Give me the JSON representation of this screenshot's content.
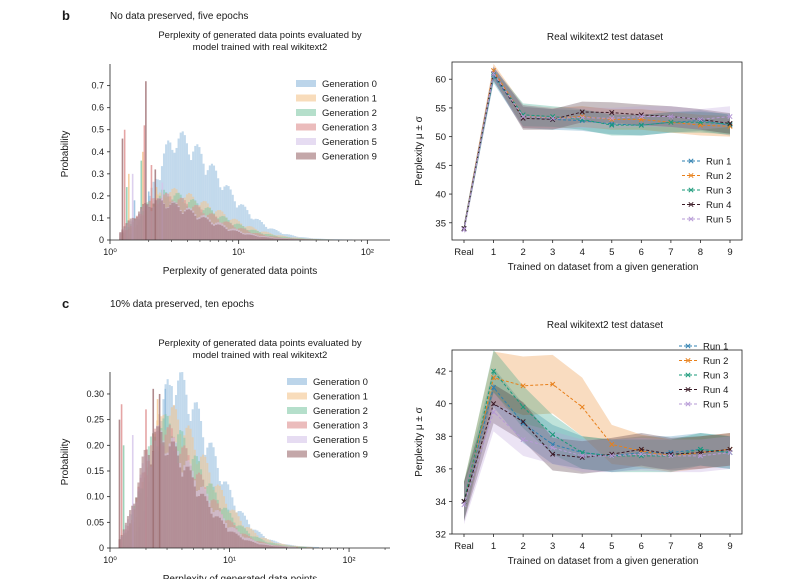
{
  "panels": [
    {
      "letter": "b",
      "caption": "No data preserved, five epochs"
    },
    {
      "letter": "c",
      "caption": "10% data preserved, ten epochs"
    }
  ],
  "gen_colors": {
    "Generation 0": "#8fb9dc",
    "Generation 1": "#f4c48e",
    "Generation 2": "#84c9a8",
    "Generation 3": "#de8f8f",
    "Generation 5": "#d5c4ea",
    "Generation 9": "#9c6d70"
  },
  "run_colors": {
    "Run 1": "#2f80b0",
    "Run 2": "#e8801b",
    "Run 3": "#1a9a7a",
    "Run 4": "#3a1a26",
    "Run 5": "#b69ad6"
  },
  "chart_data": [
    {
      "type": "histogram",
      "panel": "b",
      "title": "Perplexity of generated data points evaluated by model trained with real wikitext2",
      "title_lines": [
        "Perplexity of generated data points evaluated by",
        "model trained with real wikitext2"
      ],
      "xlabel": "Perplexity of generated data points",
      "ylabel": "Probability",
      "xscale": "log",
      "xlim": [
        1,
        150
      ],
      "ylim": [
        0,
        0.78
      ],
      "xticks": [
        {
          "v": 1,
          "label": "10⁰"
        },
        {
          "v": 10,
          "label": "10¹"
        },
        {
          "v": 100,
          "label": "10²"
        }
      ],
      "yticks": [
        0,
        0.1,
        0.2,
        0.3,
        0.4,
        0.5,
        0.6,
        0.7
      ],
      "ytick_labels": [
        "0",
        "0.1",
        "0.2",
        "0.3",
        "0.4",
        "0.5",
        "0.6",
        "0.7"
      ],
      "legend": [
        "Generation 0",
        "Generation 1",
        "Generation 2",
        "Generation 3",
        "Generation 5",
        "Generation 9"
      ],
      "series": [
        {
          "name": "Generation 0",
          "mode": 3.1,
          "spread": 0.24,
          "peak": 0.42,
          "spikes": [
            [
              1.55,
              0.18
            ],
            [
              2.0,
              0.22
            ]
          ]
        },
        {
          "name": "Generation 1",
          "mode": 2.7,
          "spread": 0.27,
          "peak": 0.2,
          "spikes": [
            [
              1.4,
              0.3
            ],
            [
              1.8,
              0.4
            ],
            [
              2.3,
              0.24
            ]
          ]
        },
        {
          "name": "Generation 2",
          "mode": 2.5,
          "spread": 0.27,
          "peak": 0.19,
          "spikes": [
            [
              1.35,
              0.24
            ],
            [
              1.75,
              0.36
            ]
          ]
        },
        {
          "name": "Generation 3",
          "mode": 2.4,
          "spread": 0.26,
          "peak": 0.18,
          "spikes": [
            [
              1.3,
              0.5
            ],
            [
              1.85,
              0.52
            ],
            [
              2.1,
              0.34
            ]
          ]
        },
        {
          "name": "Generation 5",
          "mode": 2.2,
          "spread": 0.26,
          "peak": 0.16,
          "spikes": [
            [
              1.5,
              0.3
            ],
            [
              2.55,
              0.26
            ]
          ]
        },
        {
          "name": "Generation 9",
          "mode": 2.1,
          "spread": 0.25,
          "peak": 0.16,
          "spikes": [
            [
              1.25,
              0.46
            ],
            [
              1.9,
              0.72
            ],
            [
              2.25,
              0.32
            ]
          ]
        }
      ]
    },
    {
      "type": "line",
      "panel": "b",
      "title": "Real wikitext2 test dataset",
      "xlabel": "Trained on dataset from a given generation",
      "ylabel": "Perplexity μ ± σ",
      "categories": [
        "Real",
        "1",
        "2",
        "3",
        "4",
        "5",
        "6",
        "7",
        "8",
        "9"
      ],
      "ylim": [
        32,
        63
      ],
      "yticks": [
        35,
        40,
        45,
        50,
        55,
        60
      ],
      "legend": [
        "Run 1",
        "Run 2",
        "Run 3",
        "Run 4",
        "Run 5"
      ],
      "series": [
        {
          "name": "Run 1",
          "values": [
            34,
            60.5,
            53.5,
            53,
            52.8,
            52.2,
            52,
            52.5,
            52.8,
            52
          ],
          "sigma": [
            0.8,
            1.2,
            2.0,
            1.8,
            1.8,
            1.8,
            1.8,
            1.8,
            1.8,
            1.8
          ]
        },
        {
          "name": "Run 2",
          "values": [
            34,
            61.5,
            53.5,
            53.2,
            53.5,
            53,
            53,
            52.5,
            52,
            51.8
          ],
          "sigma": [
            0.8,
            1.2,
            2.0,
            1.8,
            1.8,
            1.8,
            1.8,
            1.8,
            1.8,
            1.8
          ]
        },
        {
          "name": "Run 3",
          "values": [
            34,
            60.8,
            53.8,
            53.5,
            53,
            52,
            52,
            52.5,
            52.5,
            52.2
          ],
          "sigma": [
            0.8,
            1.2,
            2.0,
            1.8,
            1.8,
            1.8,
            1.8,
            1.8,
            1.8,
            1.8
          ]
        },
        {
          "name": "Run 4",
          "values": [
            34,
            61,
            53.2,
            53,
            54.3,
            54.2,
            53.8,
            53.5,
            53,
            52.3
          ],
          "sigma": [
            0.8,
            1.2,
            2.0,
            1.8,
            1.8,
            1.8,
            1.8,
            1.8,
            1.8,
            1.8
          ]
        },
        {
          "name": "Run 5",
          "values": [
            33.8,
            61,
            53.5,
            53.2,
            53.3,
            53.2,
            53.5,
            53.5,
            53,
            53.5
          ],
          "sigma": [
            0.8,
            1.2,
            2.0,
            1.8,
            1.8,
            1.8,
            1.8,
            1.8,
            1.8,
            1.8
          ]
        }
      ]
    },
    {
      "type": "histogram",
      "panel": "c",
      "title": "Perplexity of generated data points evaluated by model trained with real wikitext2",
      "title_lines": [
        "Perplexity of generated data points evaluated by",
        "model trained with real wikitext2"
      ],
      "xlabel": "Perplexity of generated data points",
      "ylabel": "Probability",
      "xscale": "log",
      "xlim": [
        1,
        220
      ],
      "ylim": [
        0,
        0.335
      ],
      "xticks": [
        {
          "v": 1,
          "label": "10⁰"
        },
        {
          "v": 10,
          "label": "10¹"
        },
        {
          "v": 100,
          "label": "10²"
        }
      ],
      "yticks": [
        0,
        0.05,
        0.1,
        0.15,
        0.2,
        0.25,
        0.3
      ],
      "ytick_labels": [
        "0",
        "0.05",
        "0.10",
        "0.15",
        "0.20",
        "0.25",
        "0.30"
      ],
      "legend": [
        "Generation 0",
        "Generation 1",
        "Generation 2",
        "Generation 3",
        "Generation 5",
        "Generation 9"
      ],
      "series": [
        {
          "name": "Generation 0",
          "mode": 3.2,
          "spread": 0.22,
          "peak": 0.3,
          "spikes": [
            [
              2.9,
              0.31
            ]
          ]
        },
        {
          "name": "Generation 1",
          "mode": 2.8,
          "spread": 0.24,
          "peak": 0.24,
          "spikes": [
            [
              2.5,
              0.29
            ]
          ]
        },
        {
          "name": "Generation 2",
          "mode": 2.6,
          "spread": 0.24,
          "peak": 0.22,
          "spikes": [
            [
              1.3,
              0.2
            ]
          ]
        },
        {
          "name": "Generation 3",
          "mode": 2.5,
          "spread": 0.23,
          "peak": 0.21,
          "spikes": [
            [
              1.25,
              0.28
            ],
            [
              2.0,
              0.27
            ]
          ]
        },
        {
          "name": "Generation 5",
          "mode": 2.4,
          "spread": 0.23,
          "peak": 0.2,
          "spikes": [
            [
              1.55,
              0.22
            ]
          ]
        },
        {
          "name": "Generation 9",
          "mode": 2.3,
          "spread": 0.22,
          "peak": 0.2,
          "spikes": [
            [
              1.2,
              0.25
            ],
            [
              2.3,
              0.31
            ],
            [
              2.6,
              0.3
            ]
          ]
        }
      ]
    },
    {
      "type": "line",
      "panel": "c",
      "title": "Real wikitext2 test dataset",
      "xlabel": "Trained on dataset from a given generation",
      "ylabel": "Perplexity μ ± σ",
      "categories": [
        "Real",
        "1",
        "2",
        "3",
        "4",
        "5",
        "6",
        "7",
        "8",
        "9"
      ],
      "ylim": [
        32,
        43.3
      ],
      "yticks": [
        32,
        34,
        36,
        38,
        40,
        42
      ],
      "legend": [
        "Run 1",
        "Run 2",
        "Run 3",
        "Run 4",
        "Run 5"
      ],
      "series": [
        {
          "name": "Run 1",
          "values": [
            34,
            41,
            38.8,
            37.5,
            37,
            36.8,
            37,
            37,
            37.2,
            37
          ],
          "sigma": [
            1.2,
            1.2,
            1.2,
            1.2,
            1.0,
            1.0,
            1.0,
            1.0,
            1.0,
            1.0
          ]
        },
        {
          "name": "Run 2",
          "values": [
            34,
            41.6,
            41.1,
            41.2,
            39.8,
            37.5,
            37.1,
            36.8,
            37,
            37.2
          ],
          "sigma": [
            1.2,
            1.6,
            1.8,
            1.8,
            1.8,
            1.2,
            1.0,
            1.0,
            1.0,
            1.0
          ]
        },
        {
          "name": "Run 3",
          "values": [
            34,
            42,
            39.8,
            38.1,
            37,
            36.8,
            36.8,
            36.8,
            37.2,
            37
          ],
          "sigma": [
            1.2,
            1.3,
            1.3,
            1.2,
            1.0,
            1.0,
            1.0,
            1.0,
            1.0,
            1.0
          ]
        },
        {
          "name": "Run 4",
          "values": [
            34,
            40,
            38.9,
            36.9,
            36.7,
            36.9,
            37.2,
            36.9,
            37,
            37.2
          ],
          "sigma": [
            1.2,
            1.2,
            1.2,
            1.0,
            1.0,
            1.0,
            1.0,
            1.0,
            1.0,
            1.0
          ]
        },
        {
          "name": "Run 5",
          "values": [
            33.8,
            39.5,
            37.8,
            37.3,
            36.8,
            36.8,
            36.9,
            36.8,
            36.8,
            37
          ],
          "sigma": [
            1.2,
            1.2,
            1.0,
            1.0,
            1.0,
            1.0,
            1.0,
            1.0,
            1.0,
            1.0
          ]
        }
      ]
    }
  ]
}
